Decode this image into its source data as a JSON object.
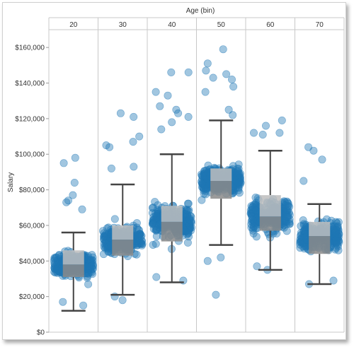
{
  "chart_data": {
    "type": "scatter",
    "subtype": "jittered strip plot with box plots",
    "title": "",
    "xlabel": "Age (bin)",
    "ylabel": "Salary",
    "categories": [
      "20",
      "30",
      "40",
      "50",
      "60",
      "70"
    ],
    "ylim": [
      0,
      170000
    ],
    "yticks": [
      0,
      20000,
      40000,
      60000,
      80000,
      100000,
      120000,
      140000,
      160000
    ],
    "ytick_labels": [
      "$0",
      "$20,000",
      "$40,000",
      "$60,000",
      "$80,000",
      "$100,000",
      "$120,000",
      "$140,000",
      "$160,000"
    ],
    "grid": false,
    "point_color": "#1f77b4",
    "box_light_color": "#bdbdbd",
    "box_dark_color": "#8a8a8a",
    "whisker_color": "#444444",
    "boxes": [
      {
        "category": "20",
        "whisker_low": 12000,
        "q1": 31000,
        "median": 38000,
        "q3": 46000,
        "whisker_high": 56000
      },
      {
        "category": "30",
        "whisker_low": 21000,
        "q1": 43000,
        "median": 52000,
        "q3": 60000,
        "whisker_high": 83000
      },
      {
        "category": "40",
        "whisker_low": 28000,
        "q1": 51000,
        "median": 62000,
        "q3": 71000,
        "whisker_high": 100000
      },
      {
        "category": "50",
        "whisker_low": 49000,
        "q1": 75000,
        "median": 85000,
        "q3": 92000,
        "whisker_high": 119000
      },
      {
        "category": "60",
        "whisker_low": 35000,
        "q1": 57000,
        "median": 65000,
        "q3": 77000,
        "whisker_high": 102000
      },
      {
        "category": "70",
        "whisker_low": 27000,
        "q1": 44000,
        "median": 54000,
        "q3": 62000,
        "whisker_high": 72000
      }
    ],
    "outliers": [
      {
        "category": "20",
        "values": [
          98000,
          95000,
          84000,
          77000,
          74000,
          73000,
          69000,
          17000,
          15000
        ]
      },
      {
        "category": "30",
        "values": [
          123000,
          121000,
          110000,
          107000,
          105000,
          104000,
          93000,
          92000,
          18000,
          20000
        ]
      },
      {
        "category": "40",
        "values": [
          146000,
          146000,
          135000,
          133000,
          127000,
          125000,
          123000,
          121000,
          118000,
          114000,
          31000,
          29000
        ]
      },
      {
        "category": "50",
        "values": [
          159000,
          151000,
          147000,
          145000,
          143000,
          142000,
          138000,
          135000,
          125000,
          122000,
          40000,
          42000,
          21000
        ]
      },
      {
        "category": "60",
        "values": [
          119000,
          116000,
          112000,
          112000,
          111000,
          37000,
          35000
        ]
      },
      {
        "category": "70",
        "values": [
          104000,
          102000,
          97000,
          85000,
          27000,
          29000
        ]
      }
    ]
  }
}
